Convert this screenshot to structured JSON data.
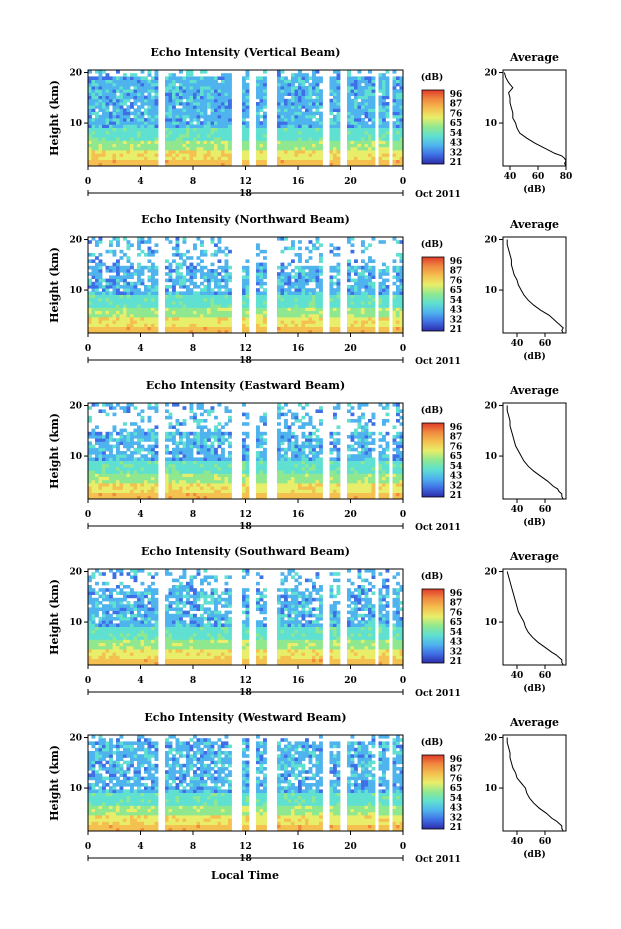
{
  "colors": [
    "#2c2ca8",
    "#3f6fe6",
    "#4fb3ee",
    "#5fe0d0",
    "#8fe890",
    "#e8ee6a",
    "#f4c050",
    "#f08a40",
    "#e03a2a"
  ],
  "footer_xlabel": "Local Time",
  "chart_data": [
    {
      "type": "heatmap",
      "title": "Echo Intensity (Vertical Beam)",
      "ylabel": "Height (km)",
      "ylim": [
        1.5,
        20.5
      ],
      "yticks": [
        "10",
        "20"
      ],
      "xlim": [
        0,
        24
      ],
      "xticks": [
        "0",
        "4",
        "8",
        "12",
        "16",
        "20",
        "0"
      ],
      "date_label": "18",
      "month_label": "Oct 2011",
      "colorbar_unit": "(dB)",
      "colorbar_labels": [
        "96",
        "87",
        "76",
        "65",
        "54",
        "43",
        "32",
        "21"
      ],
      "gaps_hours": [
        [
          5.4,
          5.9
        ],
        [
          10.9,
          11.6
        ],
        [
          12.4,
          12.8
        ],
        [
          13.6,
          14.3
        ],
        [
          17.8,
          18.3
        ],
        [
          19.3,
          19.8
        ],
        [
          21.8,
          22.1
        ],
        [
          22.8,
          23.2
        ]
      ],
      "noise_top_km": 20,
      "avg_title": "Average",
      "avg_xlabel": "(dB)",
      "avg_xticks": [
        "40",
        "60",
        "80"
      ],
      "avg_profile": {
        "height_km": [
          1.5,
          2,
          2.5,
          3,
          3.5,
          4,
          5,
          6,
          7,
          8,
          9,
          10,
          11,
          12,
          13,
          14,
          15,
          16,
          17,
          18,
          19,
          20
        ],
        "power_db": [
          80,
          79,
          80,
          79,
          77,
          72,
          65,
          58,
          52,
          47,
          45,
          44,
          42,
          42,
          41,
          40,
          40,
          39,
          42,
          39,
          37,
          36
        ]
      }
    },
    {
      "type": "heatmap",
      "title": "Echo Intensity (Northward Beam)",
      "ylabel": "Height (km)",
      "ylim": [
        1.5,
        20.5
      ],
      "yticks": [
        "10",
        "20"
      ],
      "xlim": [
        0,
        24
      ],
      "xticks": [
        "0",
        "4",
        "8",
        "12",
        "16",
        "20",
        "0"
      ],
      "date_label": "18",
      "month_label": "Oct 2011",
      "colorbar_unit": "(dB)",
      "colorbar_labels": [
        "96",
        "87",
        "76",
        "65",
        "54",
        "43",
        "32",
        "21"
      ],
      "gaps_hours": [
        [
          5.4,
          5.9
        ],
        [
          10.9,
          11.6
        ],
        [
          12.4,
          12.8
        ],
        [
          13.6,
          14.3
        ],
        [
          17.8,
          18.3
        ],
        [
          19.3,
          19.8
        ],
        [
          21.8,
          22.1
        ],
        [
          22.8,
          23.2
        ]
      ],
      "noise_top_km": 16,
      "avg_title": "Average",
      "avg_xlabel": "(dB)",
      "avg_xticks": [
        "40",
        "60"
      ],
      "avg_profile": {
        "height_km": [
          1.5,
          2,
          2.5,
          3,
          3.5,
          4,
          5,
          6,
          7,
          8,
          9,
          10,
          11,
          12,
          13,
          14,
          15,
          16,
          17,
          18,
          19,
          20
        ],
        "power_db": [
          73,
          72,
          73,
          71,
          69,
          67,
          63,
          57,
          52,
          48,
          45,
          43,
          41,
          40,
          38,
          37,
          36,
          36,
          35,
          34,
          33,
          33
        ]
      }
    },
    {
      "type": "heatmap",
      "title": "Echo Intensity (Eastward Beam)",
      "ylabel": "Height (km)",
      "ylim": [
        1.5,
        20.5
      ],
      "yticks": [
        "10",
        "20"
      ],
      "xlim": [
        0,
        24
      ],
      "xticks": [
        "0",
        "4",
        "8",
        "12",
        "16",
        "20",
        "0"
      ],
      "date_label": "18",
      "month_label": "Oct 2011",
      "colorbar_unit": "(dB)",
      "colorbar_labels": [
        "96",
        "87",
        "76",
        "65",
        "54",
        "43",
        "32",
        "21"
      ],
      "gaps_hours": [
        [
          5.4,
          5.9
        ],
        [
          10.9,
          11.6
        ],
        [
          12.4,
          12.8
        ],
        [
          13.6,
          14.3
        ],
        [
          17.8,
          18.3
        ],
        [
          19.3,
          19.8
        ],
        [
          21.8,
          22.1
        ],
        [
          22.8,
          23.2
        ]
      ],
      "noise_top_km": 16,
      "avg_title": "Average",
      "avg_xlabel": "(dB)",
      "avg_xticks": [
        "40",
        "60"
      ],
      "avg_profile": {
        "height_km": [
          1.5,
          2,
          2.5,
          3,
          3.5,
          4,
          5,
          6,
          7,
          8,
          9,
          10,
          11,
          12,
          13,
          14,
          15,
          16,
          17,
          18,
          19,
          20
        ],
        "power_db": [
          73,
          72,
          72,
          70,
          69,
          66,
          62,
          57,
          52,
          48,
          45,
          43,
          41,
          39,
          38,
          37,
          36,
          35,
          35,
          34,
          33,
          33
        ]
      }
    },
    {
      "type": "heatmap",
      "title": "Echo Intensity (Southward Beam)",
      "ylabel": "Height (km)",
      "ylim": [
        1.5,
        20.5
      ],
      "yticks": [
        "10",
        "20"
      ],
      "xlim": [
        0,
        24
      ],
      "xticks": [
        "0",
        "4",
        "8",
        "12",
        "16",
        "20",
        "0"
      ],
      "date_label": "18",
      "month_label": "Oct 2011",
      "colorbar_unit": "(dB)",
      "colorbar_labels": [
        "96",
        "87",
        "76",
        "65",
        "54",
        "43",
        "32",
        "21"
      ],
      "gaps_hours": [
        [
          5.4,
          5.9
        ],
        [
          10.9,
          11.6
        ],
        [
          12.4,
          12.8
        ],
        [
          13.6,
          14.3
        ],
        [
          17.8,
          18.3
        ],
        [
          19.3,
          19.8
        ],
        [
          21.8,
          22.1
        ],
        [
          22.8,
          23.2
        ]
      ],
      "noise_top_km": 18,
      "avg_title": "Average",
      "avg_xlabel": "(dB)",
      "avg_xticks": [
        "40",
        "60"
      ],
      "avg_profile": {
        "height_km": [
          1.5,
          2,
          2.5,
          3,
          3.5,
          4,
          5,
          6,
          7,
          8,
          9,
          10,
          11,
          12,
          13,
          14,
          15,
          16,
          17,
          18,
          19,
          20
        ],
        "power_db": [
          73,
          72,
          72,
          70,
          68,
          65,
          60,
          55,
          51,
          48,
          46,
          45,
          43,
          41,
          40,
          39,
          38,
          37,
          36,
          35,
          34,
          33
        ]
      }
    },
    {
      "type": "heatmap",
      "title": "Echo Intensity (Westward Beam)",
      "ylabel": "Height (km)",
      "ylim": [
        1.5,
        20.5
      ],
      "yticks": [
        "10",
        "20"
      ],
      "xlim": [
        0,
        24
      ],
      "xticks": [
        "0",
        "4",
        "8",
        "12",
        "16",
        "20",
        "0"
      ],
      "date_label": "18",
      "month_label": "Oct 2011",
      "colorbar_unit": "(dB)",
      "colorbar_labels": [
        "96",
        "87",
        "76",
        "65",
        "54",
        "43",
        "32",
        "21"
      ],
      "gaps_hours": [
        [
          5.4,
          5.9
        ],
        [
          10.9,
          11.6
        ],
        [
          12.4,
          12.8
        ],
        [
          13.6,
          14.3
        ],
        [
          17.8,
          18.3
        ],
        [
          19.3,
          19.8
        ],
        [
          21.8,
          22.1
        ],
        [
          22.8,
          23.2
        ]
      ],
      "noise_top_km": 20,
      "avg_title": "Average",
      "avg_xlabel": "(dB)",
      "avg_xticks": [
        "40",
        "60"
      ],
      "avg_profile": {
        "height_km": [
          1.5,
          2,
          2.5,
          3,
          3.5,
          4,
          5,
          6,
          7,
          8,
          9,
          10,
          11,
          12,
          13,
          14,
          15,
          16,
          17,
          18,
          19,
          20
        ],
        "power_db": [
          73,
          72,
          72,
          70,
          68,
          65,
          61,
          56,
          52,
          49,
          47,
          46,
          43,
          40,
          39,
          37,
          36,
          35,
          35,
          34,
          33,
          33
        ]
      }
    }
  ]
}
